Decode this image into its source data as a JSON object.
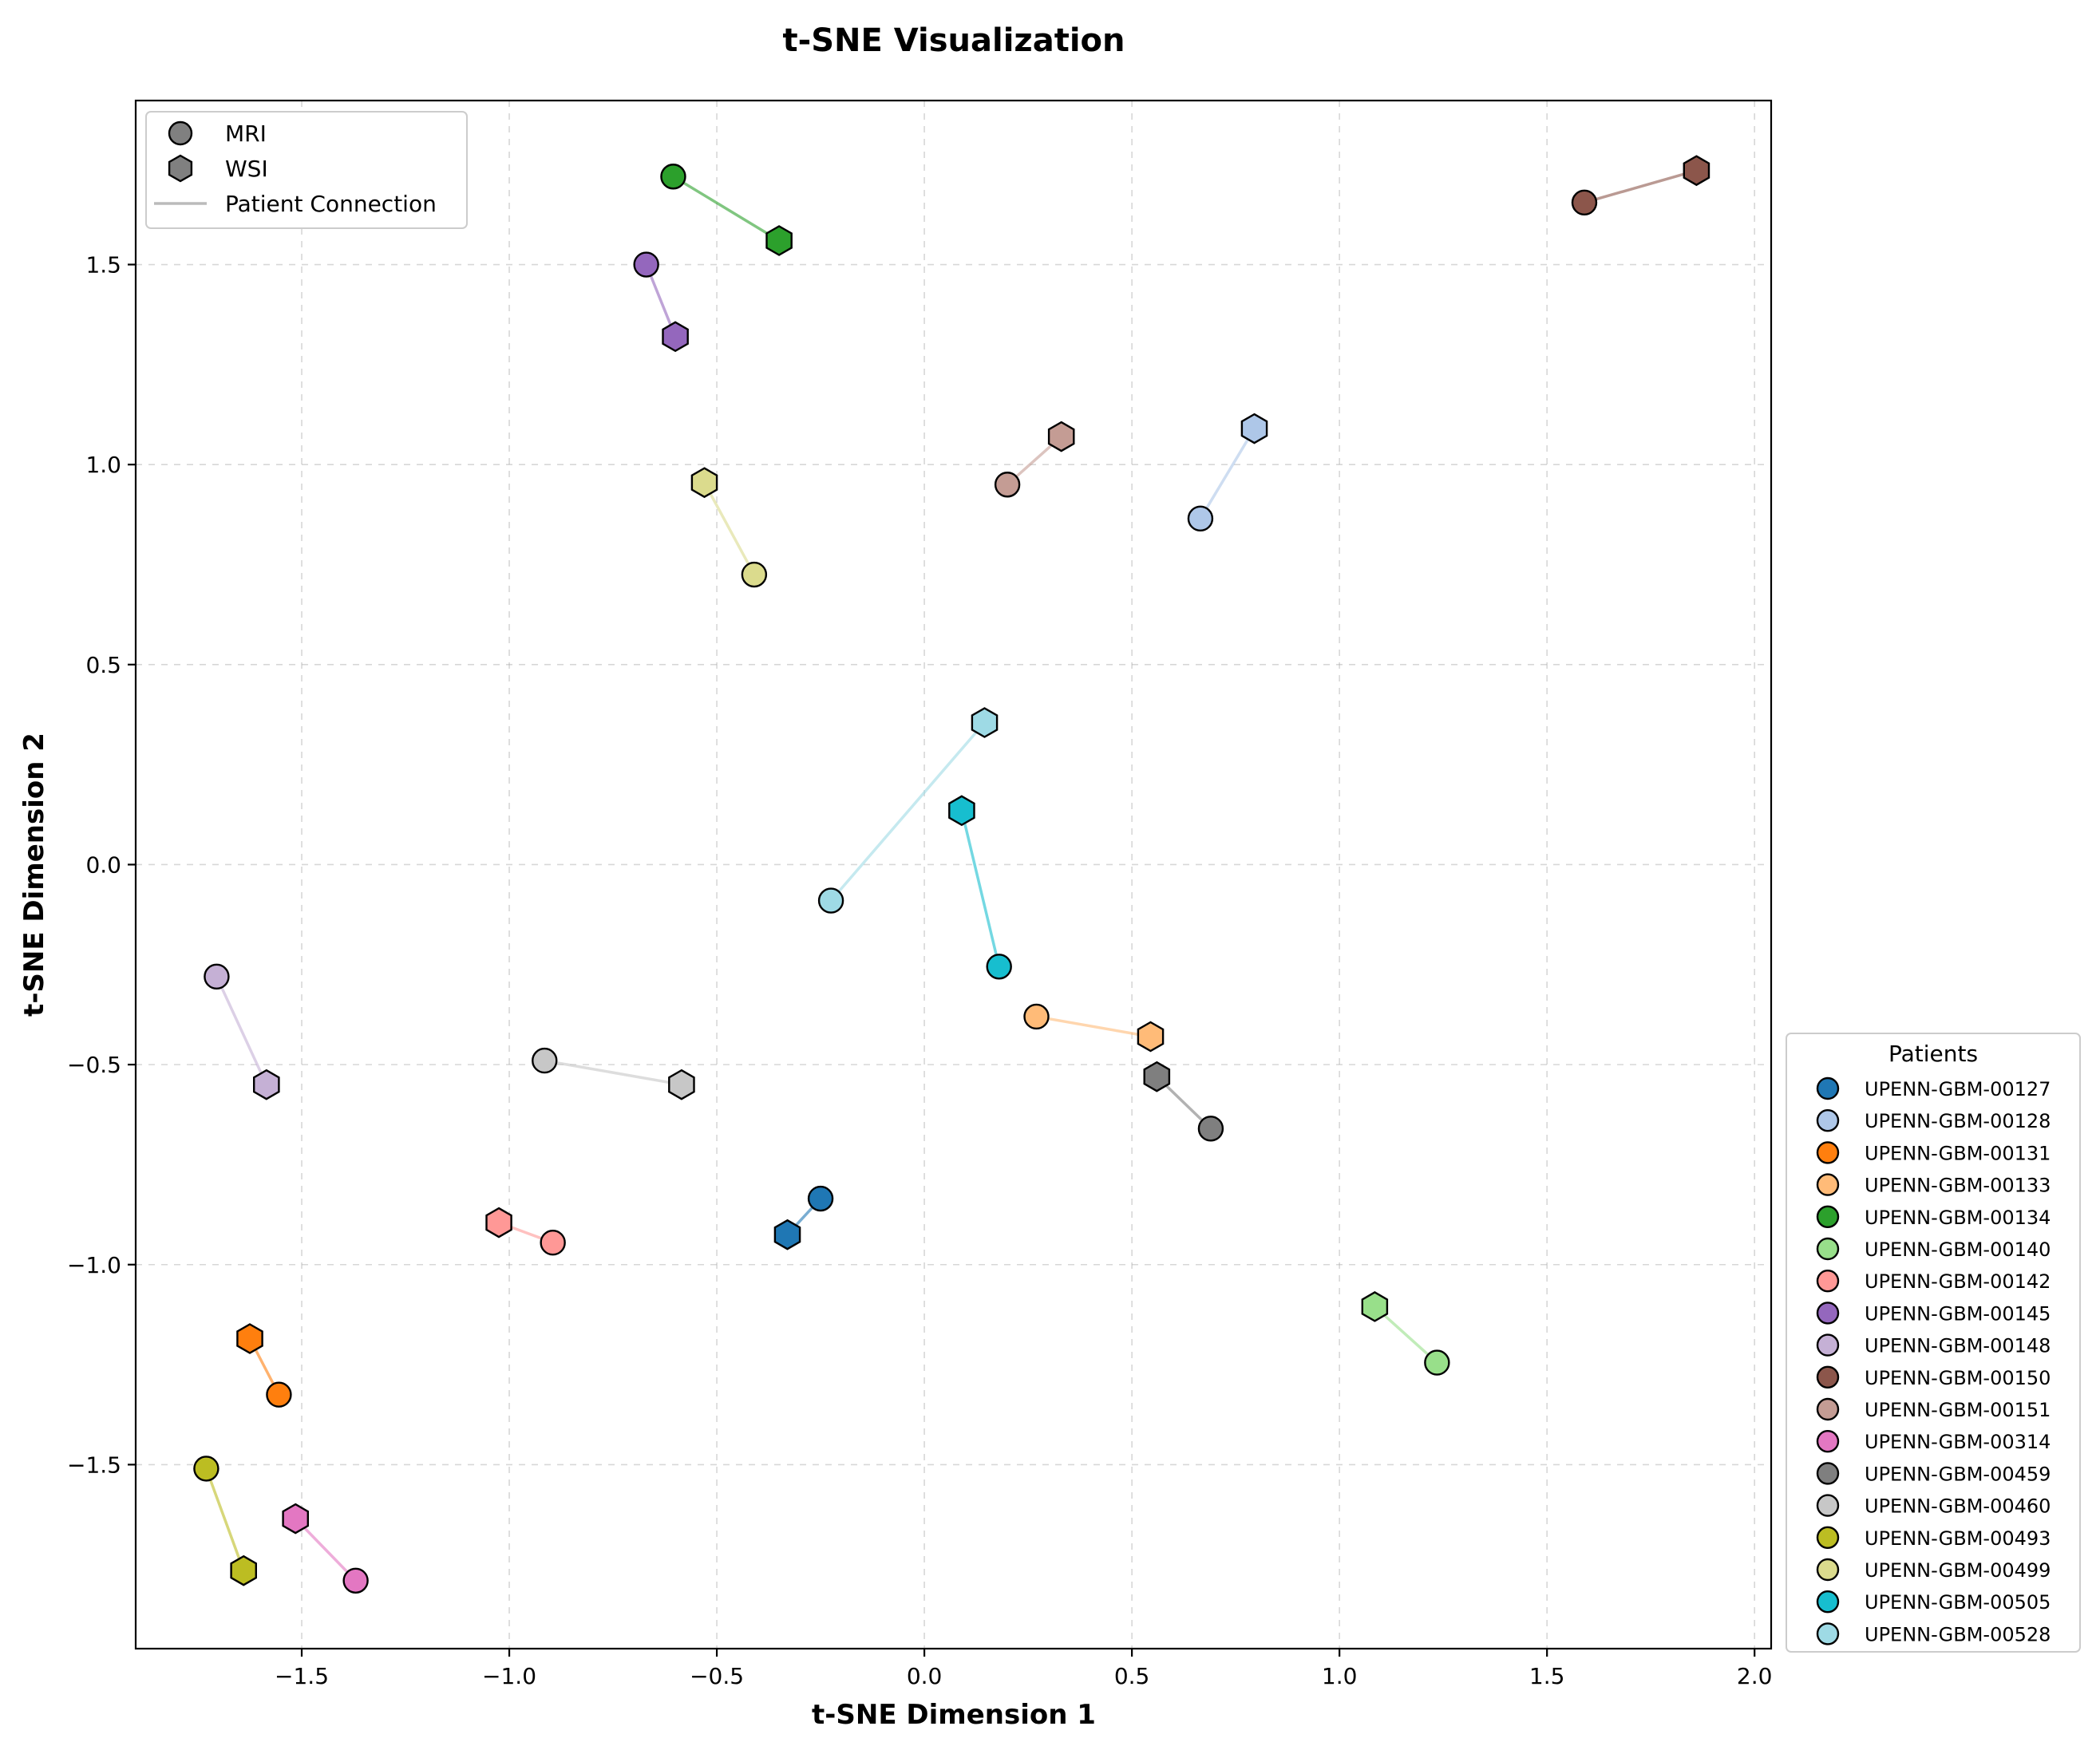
{
  "chart_data": {
    "type": "scatter",
    "title": "t-SNE Visualization",
    "xlabel": "t-SNE Dimension 1",
    "ylabel": "t-SNE Dimension 2",
    "xlim": [
      -1.9,
      2.04
    ],
    "ylim": [
      -1.96,
      1.91
    ],
    "xticks": [
      -1.5,
      -1.0,
      -0.5,
      0.0,
      0.5,
      1.0,
      1.5,
      2.0
    ],
    "xtick_labels": [
      "−1.5",
      "−1.0",
      "−0.5",
      "0.0",
      "0.5",
      "1.0",
      "1.5",
      "2.0"
    ],
    "yticks": [
      -1.5,
      -1.0,
      -0.5,
      0.0,
      0.5,
      1.0,
      1.5
    ],
    "ytick_labels": [
      "−1.5",
      "−1.0",
      "−0.5",
      "0.0",
      "0.5",
      "1.0",
      "1.5"
    ],
    "grid": true,
    "modality_legend": {
      "placement": "top-left",
      "entries": [
        {
          "label": "MRI",
          "marker": "circle",
          "color": "#808080"
        },
        {
          "label": "WSI",
          "marker": "hexagon",
          "color": "#808080"
        },
        {
          "label": "Patient Connection",
          "marker": "line",
          "color": "#bbbbbb"
        }
      ]
    },
    "patient_legend": {
      "title": "Patients",
      "placement": "right-bottom"
    },
    "series": [
      {
        "name": "UPENN-GBM-00127",
        "color": "#1f77b4",
        "mri": [
          -0.25,
          -0.835
        ],
        "wsi": [
          -0.33,
          -0.925
        ]
      },
      {
        "name": "UPENN-GBM-00128",
        "color": "#aec7e8",
        "mri": [
          0.665,
          0.865
        ],
        "wsi": [
          0.795,
          1.09
        ]
      },
      {
        "name": "UPENN-GBM-00131",
        "color": "#ff7f0e",
        "mri": [
          -1.555,
          -1.325
        ],
        "wsi": [
          -1.625,
          -1.185
        ]
      },
      {
        "name": "UPENN-GBM-00133",
        "color": "#ffbb78",
        "mri": [
          0.27,
          -0.38
        ],
        "wsi": [
          0.545,
          -0.43
        ]
      },
      {
        "name": "UPENN-GBM-00134",
        "color": "#2ca02c",
        "mri": [
          -0.605,
          1.72
        ],
        "wsi": [
          -0.35,
          1.56
        ]
      },
      {
        "name": "UPENN-GBM-00140",
        "color": "#98df8a",
        "mri": [
          1.235,
          -1.245
        ],
        "wsi": [
          1.085,
          -1.105
        ]
      },
      {
        "name": "UPENN-GBM-00142",
        "color": "#ff9896",
        "mri": [
          -0.895,
          -0.945
        ],
        "wsi": [
          -1.025,
          -0.895
        ]
      },
      {
        "name": "UPENN-GBM-00145",
        "color": "#9467bd",
        "mri": [
          -0.67,
          1.5
        ],
        "wsi": [
          -0.6,
          1.32
        ]
      },
      {
        "name": "UPENN-GBM-00148",
        "color": "#c5b0d5",
        "mri": [
          -1.705,
          -0.28
        ],
        "wsi": [
          -1.585,
          -0.55
        ]
      },
      {
        "name": "UPENN-GBM-00150",
        "color": "#8c564b",
        "mri": [
          1.59,
          1.655
        ],
        "wsi": [
          1.86,
          1.735
        ]
      },
      {
        "name": "UPENN-GBM-00151",
        "color": "#c49c94",
        "mri": [
          0.2,
          0.95
        ],
        "wsi": [
          0.33,
          1.07
        ]
      },
      {
        "name": "UPENN-GBM-00314",
        "color": "#e377c2",
        "mri": [
          -1.37,
          -1.79
        ],
        "wsi": [
          -1.515,
          -1.635
        ]
      },
      {
        "name": "UPENN-GBM-00459",
        "color": "#7f7f7f",
        "mri": [
          0.69,
          -0.66
        ],
        "wsi": [
          0.56,
          -0.53
        ]
      },
      {
        "name": "UPENN-GBM-00460",
        "color": "#c7c7c7",
        "mri": [
          -0.915,
          -0.49
        ],
        "wsi": [
          -0.585,
          -0.55
        ]
      },
      {
        "name": "UPENN-GBM-00493",
        "color": "#bcbd22",
        "mri": [
          -1.73,
          -1.51
        ],
        "wsi": [
          -1.64,
          -1.765
        ]
      },
      {
        "name": "UPENN-GBM-00499",
        "color": "#dbdb8d",
        "mri": [
          -0.41,
          0.725
        ],
        "wsi": [
          -0.53,
          0.955
        ]
      },
      {
        "name": "UPENN-GBM-00505",
        "color": "#17becf",
        "mri": [
          0.18,
          -0.255
        ],
        "wsi": [
          0.09,
          0.135
        ]
      },
      {
        "name": "UPENN-GBM-00528",
        "color": "#9edae5",
        "mri": [
          -0.225,
          -0.09
        ],
        "wsi": [
          0.145,
          0.355
        ]
      }
    ]
  }
}
